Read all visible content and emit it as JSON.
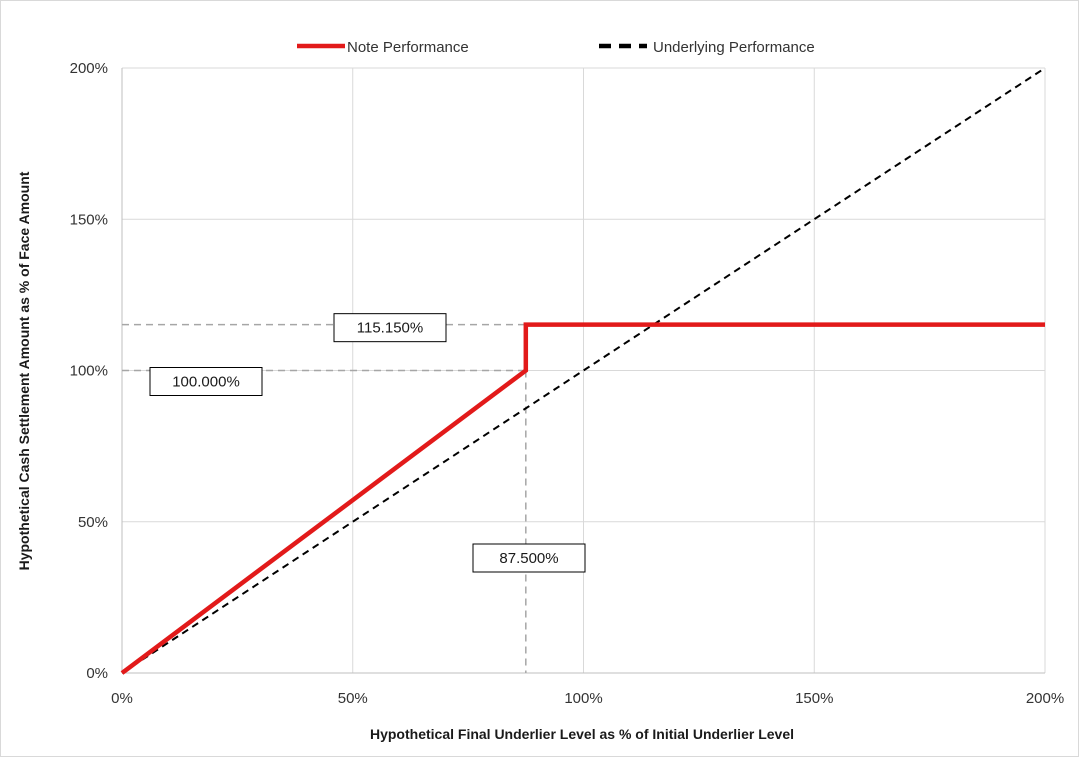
{
  "chart_data": {
    "type": "line",
    "xlabel": "Hypothetical Final Underlier Level as % of Initial Underlier Level",
    "ylabel": "Hypothetical Cash Settlement Amount as % of Face Amount",
    "xlim": [
      0,
      200
    ],
    "ylim": [
      0,
      200
    ],
    "x_ticks": [
      "0%",
      "50%",
      "100%",
      "150%",
      "200%"
    ],
    "y_ticks": [
      "0%",
      "50%",
      "100%",
      "150%",
      "200%"
    ],
    "grid": true,
    "legend_position": "top-center",
    "series": [
      {
        "name": "Note Performance",
        "color": "#e21a1a",
        "style": "solid",
        "x": [
          0,
          87.5,
          87.5,
          200
        ],
        "y": [
          0,
          100,
          115.15,
          115.15
        ]
      },
      {
        "name": "Underlying Performance",
        "color": "#000000",
        "style": "dashed",
        "x": [
          0,
          200
        ],
        "y": [
          0,
          200
        ]
      }
    ],
    "annotations": [
      {
        "text": "115.150%",
        "x": 87.5,
        "y": 115.15
      },
      {
        "text": "100.000%",
        "x": 87.5,
        "y": 100
      },
      {
        "text": "87.500%",
        "x": 87.5,
        "y": 0
      }
    ]
  }
}
